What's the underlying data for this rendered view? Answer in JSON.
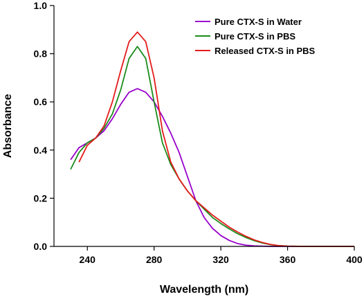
{
  "chart_data": {
    "type": "line",
    "xlabel": "Wavelength (nm)",
    "ylabel": "Absorbance",
    "xlim": [
      220,
      400
    ],
    "ylim": [
      0.0,
      1.0
    ],
    "xticks": [
      240,
      280,
      320,
      360,
      400
    ],
    "yticks": [
      0.0,
      0.2,
      0.4,
      0.6,
      0.8,
      1.0
    ],
    "ytick_labels": [
      "0.0",
      "0.2",
      "0.4",
      "0.6",
      "0.8",
      "1.0"
    ],
    "legend_position": "top-right",
    "series": [
      {
        "name": "Pure CTX-S in Water",
        "color": "#9900cc",
        "x": [
          230,
          235,
          240,
          245,
          250,
          255,
          260,
          265,
          270,
          275,
          280,
          285,
          290,
          295,
          300,
          305,
          310,
          315,
          320,
          325,
          330,
          335,
          340,
          345,
          350,
          355,
          360,
          370,
          380,
          390,
          400
        ],
        "y": [
          0.36,
          0.41,
          0.43,
          0.45,
          0.48,
          0.53,
          0.59,
          0.64,
          0.655,
          0.64,
          0.6,
          0.54,
          0.47,
          0.39,
          0.29,
          0.19,
          0.12,
          0.075,
          0.045,
          0.025,
          0.012,
          0.005,
          0.002,
          0.001,
          0.0,
          0.0,
          0.0,
          0.0,
          0.0,
          0.0,
          0.0
        ]
      },
      {
        "name": "Pure CTX-S in PBS",
        "color": "#1a8c1a",
        "x": [
          230,
          235,
          240,
          245,
          250,
          255,
          260,
          265,
          270,
          275,
          280,
          285,
          290,
          295,
          300,
          305,
          310,
          315,
          320,
          325,
          330,
          335,
          340,
          345,
          350,
          355,
          360,
          370,
          380,
          390,
          400
        ],
        "y": [
          0.32,
          0.39,
          0.43,
          0.45,
          0.49,
          0.55,
          0.65,
          0.78,
          0.83,
          0.78,
          0.6,
          0.43,
          0.34,
          0.28,
          0.23,
          0.19,
          0.155,
          0.12,
          0.095,
          0.073,
          0.053,
          0.037,
          0.024,
          0.014,
          0.007,
          0.003,
          0.001,
          0.0,
          0.0,
          0.0,
          0.0
        ]
      },
      {
        "name": "Released CTX-S in PBS",
        "color": "#e41a1a",
        "x": [
          235,
          240,
          245,
          250,
          255,
          260,
          265,
          270,
          275,
          280,
          285,
          290,
          295,
          300,
          305,
          310,
          315,
          320,
          325,
          330,
          335,
          340,
          345,
          350,
          355,
          360,
          370,
          380,
          390,
          400
        ],
        "y": [
          0.35,
          0.42,
          0.45,
          0.5,
          0.6,
          0.73,
          0.85,
          0.89,
          0.85,
          0.7,
          0.48,
          0.35,
          0.28,
          0.23,
          0.19,
          0.16,
          0.13,
          0.105,
          0.08,
          0.06,
          0.042,
          0.027,
          0.016,
          0.008,
          0.003,
          0.001,
          0.0,
          0.0,
          0.0,
          0.0
        ]
      }
    ]
  }
}
